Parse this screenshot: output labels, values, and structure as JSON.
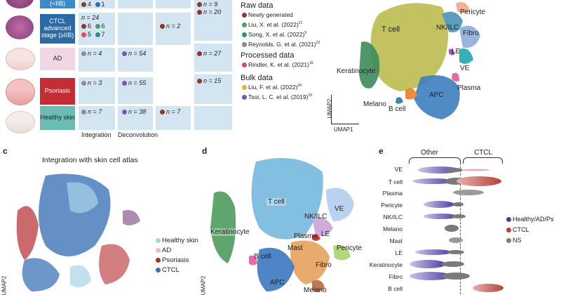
{
  "panel_b": {
    "rows": [
      {
        "label": "(<IIB)",
        "color": "#3b8ac9",
        "text_color": "#ffffff",
        "integration": [
          {
            "color": "#8b3a2f",
            "text": "4"
          },
          {
            "color": "#2e6fb3",
            "text": "1"
          }
        ],
        "deconvolution": [],
        "bulk1": [],
        "bulk2": [
          {
            "color": "#8b3a2f",
            "text": "n = 9"
          },
          {
            "color": "#8b3a2f",
            "text": "n = 20"
          }
        ]
      },
      {
        "label": "CTCL advanced stage (≥IIB)",
        "color": "#2a6aa8",
        "text_color": "#ffffff",
        "integration": [
          {
            "color": "",
            "text": "n = 24"
          },
          {
            "color": "#8b3a2f",
            "text": "6"
          },
          {
            "color": "#4aa15d",
            "text": "6"
          },
          {
            "color": "#e04860",
            "text": "5"
          },
          {
            "color": "#2e8e8c",
            "text": "7"
          }
        ],
        "deconvolution": [],
        "bulk1": [
          {
            "color": "#8b3a2f",
            "text": "n = 2"
          }
        ],
        "bulk2": []
      },
      {
        "label": "AD",
        "color": "#f0d7e3",
        "text_color": "#222222",
        "integration": [
          {
            "color": "#8c8c8c",
            "text": "n = 4"
          }
        ],
        "deconvolution": [
          {
            "color": "#7a56b5",
            "text": "n = 54"
          }
        ],
        "bulk1": [],
        "bulk2": [
          {
            "color": "#8b3a2f",
            "text": "n = 27"
          }
        ]
      },
      {
        "label": "Psoriasis",
        "color": "#c42d33",
        "text_color": "#ffffff",
        "integration": [
          {
            "color": "#8c8c8c",
            "text": "n = 3"
          }
        ],
        "deconvolution": [
          {
            "color": "#7a56b5",
            "text": "n = 55"
          }
        ],
        "bulk1": [],
        "bulk2": [
          {
            "color": "#8b3a2f",
            "text": "n = 15"
          }
        ]
      },
      {
        "label": "Healthy skin",
        "color": "#6bbdb3",
        "text_color": "#222222",
        "integration": [
          {
            "color": "#8c8c8c",
            "text": "n = 7"
          }
        ],
        "deconvolution": [
          {
            "color": "#7a56b5",
            "text": "n = 38"
          }
        ],
        "bulk1": [
          {
            "color": "#8b3a2f",
            "text": "n = 7"
          }
        ],
        "bulk2": []
      }
    ],
    "col_labels": [
      "Integration",
      "Deconvolution"
    ],
    "legend": {
      "raw_title": "Raw data",
      "raw": [
        {
          "color": "#8b3a2f",
          "text": "Newly generated"
        },
        {
          "color": "#4aa15d",
          "text": "Liu, X. et al. (2022)",
          "ref": "21"
        },
        {
          "color": "#2e8e8c",
          "text": "Song, X. et al. (2022)",
          "ref": "9"
        },
        {
          "color": "#8c8c8c",
          "text": "Reynolds, G. et al. (2021)",
          "ref": "22"
        }
      ],
      "processed_title": "Processed data",
      "processed": [
        {
          "color": "#e04860",
          "text": "Rindler, K. et al. (2021)",
          "ref": "16"
        }
      ],
      "bulk_title": "Bulk data",
      "bulk": [
        {
          "color": "#e0b830",
          "text": "Liu, F. et al. (2022)",
          "ref": "24"
        },
        {
          "color": "#7a56b5",
          "text": "Tsoi, L. C. et al. (2019)",
          "ref": "23"
        }
      ]
    }
  },
  "panel_umap_top": {
    "labels": [
      "T cell",
      "Pericyte",
      "NK/ILC",
      "Fibro",
      "LE",
      "VE",
      "Keratinocyte",
      "Plasma",
      "APC",
      "Melano",
      "B cell"
    ],
    "axis_y": "UMAP2",
    "axis_x": "UMAP1"
  },
  "panel_c": {
    "letter": "c",
    "title": "Integration with skin cell atlas",
    "legend": [
      {
        "color": "#a9d3e8",
        "text": "Healthy skin"
      },
      {
        "color": "#f0b8cc",
        "text": "AD"
      },
      {
        "color": "#b52a2e",
        "text": "Psoriasis"
      },
      {
        "color": "#3b6fb0",
        "text": "CTCL"
      }
    ],
    "axis_y": "UMAP2"
  },
  "panel_d": {
    "letter": "d",
    "labels": [
      "T cell",
      "NK/ILC",
      "VE",
      "Keratinocyte",
      "Plasma",
      "LE",
      "Mast",
      "Pericyte",
      "B cell",
      "Fibro",
      "APC",
      "Melano"
    ],
    "axis_y": "UMAP2"
  },
  "panel_e": {
    "letter": "e",
    "group_left": "Other",
    "group_right": "CTCL",
    "rows": [
      "VE",
      "T cell",
      "Plasma",
      "Pericyte",
      "NK/ILC",
      "Melano",
      "Mast",
      "LE",
      "Keratinocyte",
      "Fibro",
      "B cell"
    ],
    "legend": [
      {
        "color": "#4a3fa0",
        "text": "Healthy/AD/Ps"
      },
      {
        "color": "#b3443f",
        "text": "CTCL"
      },
      {
        "color": "#7a7a7a",
        "text": "NS"
      }
    ]
  }
}
